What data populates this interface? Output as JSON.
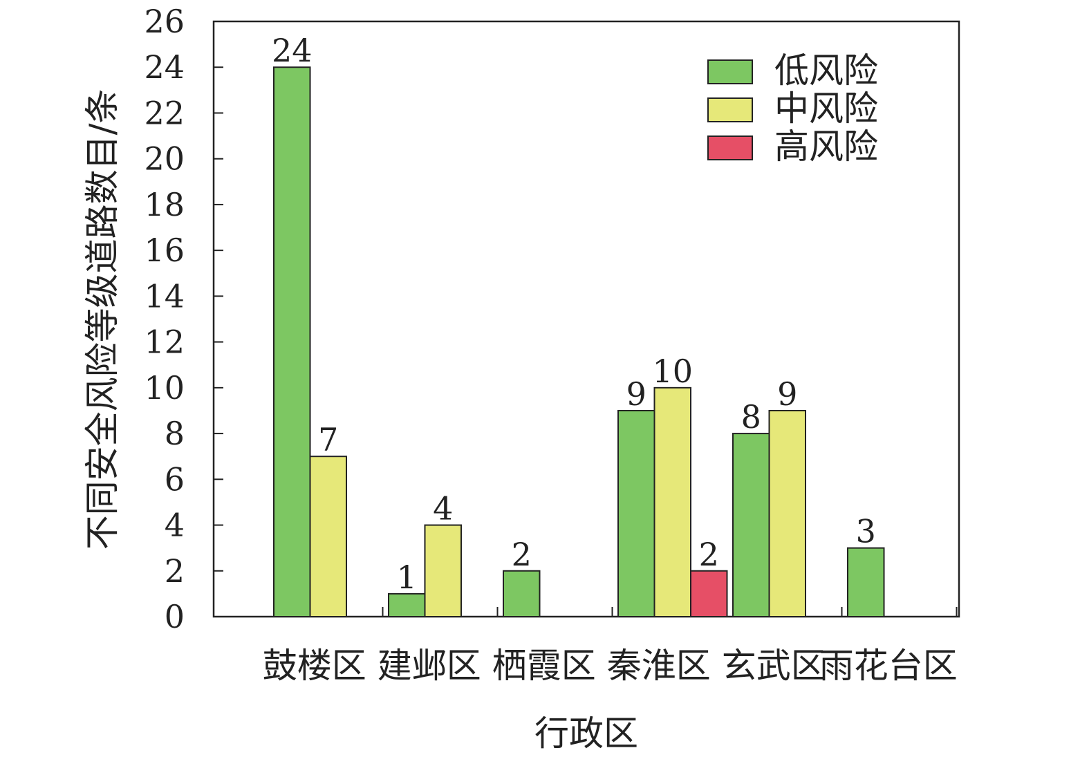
{
  "chart_data": {
    "type": "bar",
    "title": "",
    "xlabel": "行政区",
    "ylabel": "不同安全风险等级道路数目/条",
    "categories": [
      "鼓楼区",
      "建邺区",
      "栖霞区",
      "秦淮区",
      "玄武区",
      "雨花台区"
    ],
    "series": [
      {
        "name": "低风险",
        "color": "#7dc762",
        "values": [
          24,
          1,
          2,
          9,
          8,
          3
        ]
      },
      {
        "name": "中风险",
        "color": "#e6e879",
        "values": [
          7,
          4,
          null,
          10,
          9,
          null
        ]
      },
      {
        "name": "高风险",
        "color": "#e64f66",
        "values": [
          null,
          null,
          null,
          2,
          null,
          null
        ]
      }
    ],
    "ylim": [
      0,
      26
    ],
    "yticks": [
      0,
      2,
      4,
      6,
      8,
      10,
      12,
      14,
      16,
      18,
      20,
      22,
      24,
      26
    ],
    "grid": false,
    "legend_position": "top-right"
  }
}
